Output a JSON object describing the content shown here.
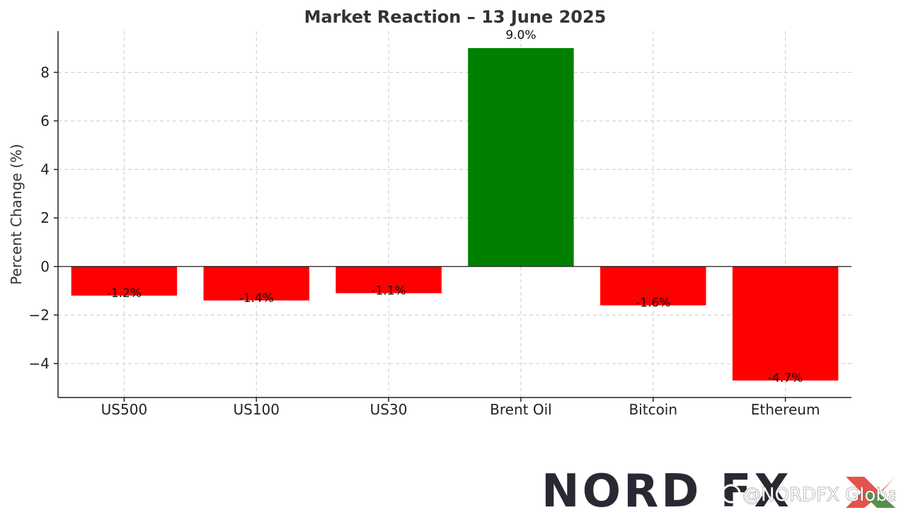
{
  "chart_data": {
    "type": "bar",
    "title": "Market Reaction – 13 June 2025",
    "xlabel": "",
    "ylabel": "Percent Change (%)",
    "categories": [
      "US500",
      "US100",
      "US30",
      "Brent Oil",
      "Bitcoin",
      "Ethereum"
    ],
    "values": [
      -1.2,
      -1.4,
      -1.1,
      9.0,
      -1.6,
      -4.7
    ],
    "data_labels": [
      "-1.2%",
      "-1.4%",
      "-1.1%",
      "9.0%",
      "-1.6%",
      "-4.7%"
    ],
    "ylim": [
      -5.4,
      9.7
    ],
    "yticks": [
      -4,
      -2,
      0,
      2,
      4,
      6,
      8
    ],
    "ytick_labels": [
      "−4",
      "−2",
      "0",
      "2",
      "4",
      "6",
      "8"
    ],
    "grid": true,
    "colors": {
      "positive": "#008000",
      "negative": "#ff0000"
    }
  },
  "watermark": {
    "logo": "NORD FX",
    "handle": "@NORDFX Global",
    "logo_accent_red": "#e0322b",
    "logo_accent_green": "#3a9e4a"
  }
}
